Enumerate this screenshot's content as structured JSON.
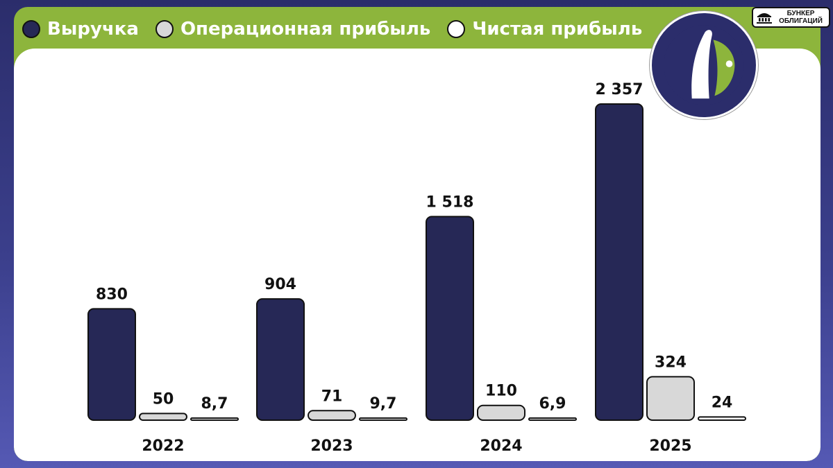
{
  "legend": {
    "items": [
      {
        "label": "Выручка",
        "color": "#262856"
      },
      {
        "label": "Операционная прибыль",
        "color": "#d8d8d8"
      },
      {
        "label": "Чистая прибыль",
        "color": "#ffffff"
      }
    ]
  },
  "brand": {
    "line1": "БУНКЕР",
    "line2": "ОБЛИГАЦИЙ",
    "icon": "building-icon"
  },
  "logo": {
    "icon": "company-logo-icon"
  },
  "chart_data": {
    "type": "bar",
    "title": "",
    "xlabel": "",
    "ylabel": "",
    "categories": [
      "2022",
      "2023",
      "2024",
      "2025"
    ],
    "series": [
      {
        "name": "Выручка",
        "values": [
          830,
          904,
          1518,
          2357
        ],
        "labels": [
          "830",
          "904",
          "1 518",
          "2 357"
        ],
        "color": "#262856"
      },
      {
        "name": "Операционная прибыль",
        "values": [
          50,
          71,
          110,
          324
        ],
        "labels": [
          "50",
          "71",
          "110",
          "324"
        ],
        "color": "#d8d8d8"
      },
      {
        "name": "Чистая прибыль",
        "values": [
          8.7,
          9.7,
          6.9,
          24
        ],
        "labels": [
          "8,7",
          "9,7",
          "6,9",
          "24"
        ],
        "color": "#ffffff"
      }
    ],
    "ylim": [
      0,
      2357
    ],
    "grid": false,
    "legend_position": "top-left"
  }
}
